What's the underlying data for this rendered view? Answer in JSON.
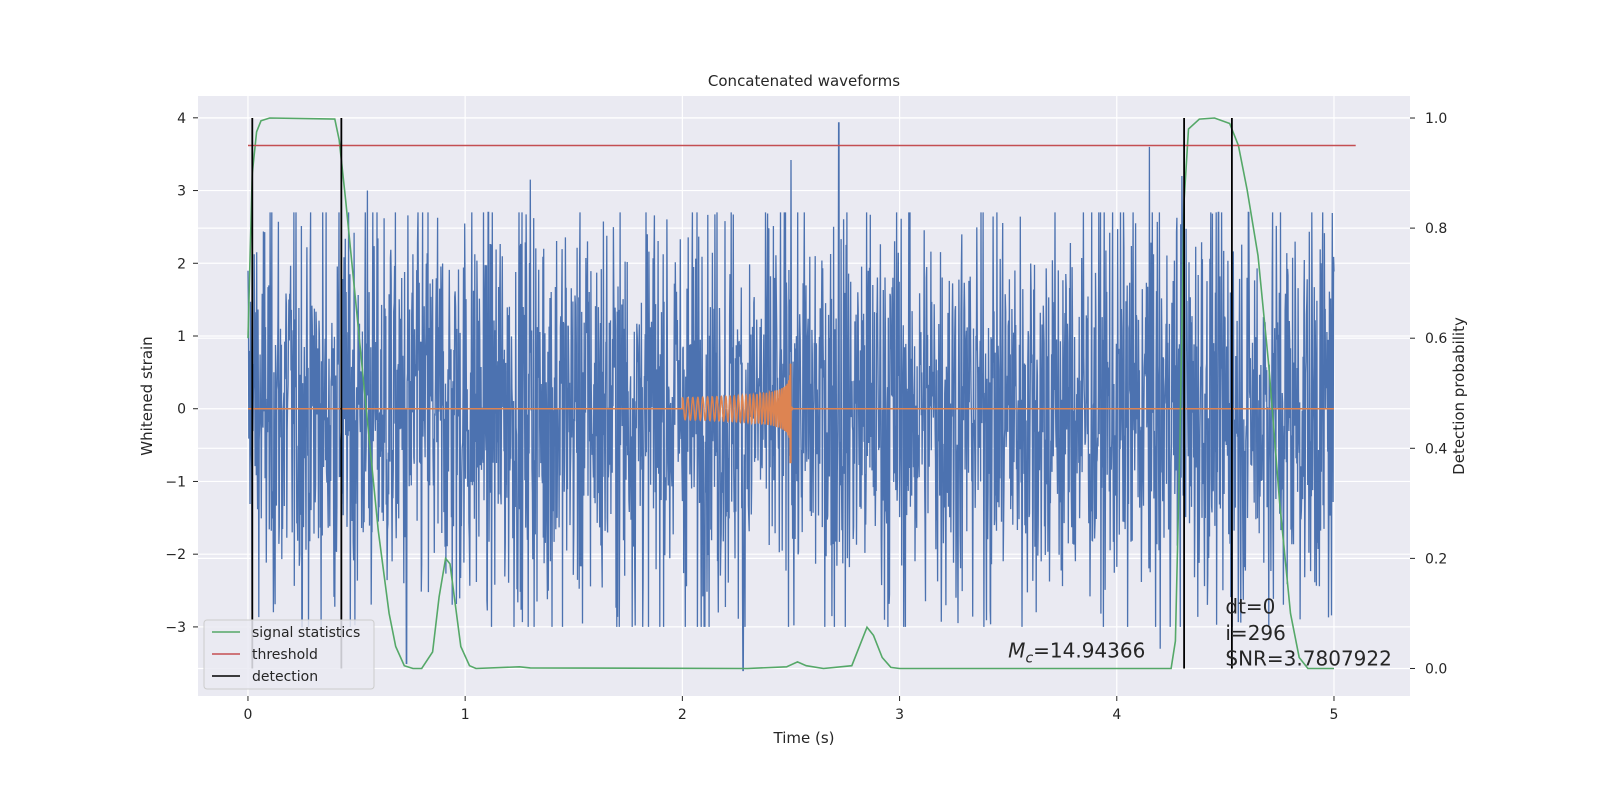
{
  "chart_data": {
    "type": "line",
    "title": "Concatenated waveforms",
    "xlabel": "Time (s)",
    "ylabel": "Whitened strain",
    "y2label": "Detection probability",
    "xlim": [
      -0.23,
      5.35
    ],
    "ylim": [
      -3.95,
      4.3
    ],
    "y2lim": [
      -0.05,
      1.04
    ],
    "xticks": [
      0,
      1,
      2,
      3,
      4,
      5
    ],
    "yticks": [
      -3,
      -2,
      -1,
      0,
      1,
      2,
      3,
      4
    ],
    "y2ticks": [
      0.0,
      0.2,
      0.4,
      0.6,
      0.8,
      1.0
    ],
    "x_tick_labels": [
      "0",
      "1",
      "2",
      "3",
      "4",
      "5"
    ],
    "y_tick_labels": [
      "−3",
      "−2",
      "−1",
      "0",
      "1",
      "2",
      "3",
      "4"
    ],
    "y2_tick_labels": [
      "0.0",
      "0.2",
      "0.4",
      "0.6",
      "0.8",
      "1.0"
    ],
    "grid": true,
    "legend_position": "lower-left",
    "colors": {
      "strain": "#4c72b0",
      "template": "#dd8452",
      "signal": "#55a868",
      "threshold": "#c44e52",
      "detection": "#000000",
      "axes_bg": "#eaeaf2",
      "grid": "#ffffff"
    },
    "series": [
      {
        "name": "",
        "axis": "left",
        "kind": "noise",
        "x_range": [
          0,
          5
        ],
        "typical_amplitude": 2.3,
        "peaks": [
          [
            2.72,
            3.93
          ],
          [
            2.5,
            3.42
          ],
          [
            4.15,
            3.6
          ],
          [
            4.3,
            3.2
          ],
          [
            1.3,
            3.15
          ],
          [
            0.55,
            3.0
          ],
          [
            2.28,
            -3.6
          ],
          [
            0.73,
            -3.5
          ],
          [
            4.2,
            -3.3
          ]
        ]
      },
      {
        "name": "",
        "axis": "left",
        "kind": "chirp",
        "x_range": [
          2.0,
          2.52
        ],
        "peak_time": 2.5,
        "peak_amplitude": 0.62
      },
      {
        "name": "signal statistics",
        "axis": "right",
        "points": [
          [
            0.0,
            0.6
          ],
          [
            0.01,
            0.75
          ],
          [
            0.02,
            0.9
          ],
          [
            0.04,
            0.975
          ],
          [
            0.06,
            0.995
          ],
          [
            0.1,
            1.0
          ],
          [
            0.4,
            0.998
          ],
          [
            0.42,
            0.96
          ],
          [
            0.45,
            0.85
          ],
          [
            0.5,
            0.65
          ],
          [
            0.55,
            0.45
          ],
          [
            0.6,
            0.25
          ],
          [
            0.65,
            0.1
          ],
          [
            0.68,
            0.04
          ],
          [
            0.72,
            0.005
          ],
          [
            0.76,
            0.0
          ],
          [
            0.8,
            0.0
          ],
          [
            0.85,
            0.03
          ],
          [
            0.88,
            0.13
          ],
          [
            0.91,
            0.2
          ],
          [
            0.93,
            0.19
          ],
          [
            0.95,
            0.13
          ],
          [
            0.98,
            0.04
          ],
          [
            1.02,
            0.005
          ],
          [
            1.05,
            0.0
          ],
          [
            1.25,
            0.003
          ],
          [
            1.3,
            0.001
          ],
          [
            2.3,
            0.0
          ],
          [
            2.48,
            0.003
          ],
          [
            2.53,
            0.012
          ],
          [
            2.57,
            0.005
          ],
          [
            2.65,
            0.0
          ],
          [
            2.78,
            0.005
          ],
          [
            2.82,
            0.045
          ],
          [
            2.85,
            0.075
          ],
          [
            2.88,
            0.06
          ],
          [
            2.92,
            0.02
          ],
          [
            2.96,
            0.002
          ],
          [
            3.0,
            0.0
          ],
          [
            4.25,
            0.0
          ],
          [
            4.27,
            0.05
          ],
          [
            4.29,
            0.4
          ],
          [
            4.31,
            0.85
          ],
          [
            4.33,
            0.98
          ],
          [
            4.38,
            0.998
          ],
          [
            4.45,
            1.0
          ],
          [
            4.52,
            0.99
          ],
          [
            4.56,
            0.95
          ],
          [
            4.6,
            0.87
          ],
          [
            4.65,
            0.75
          ],
          [
            4.7,
            0.55
          ],
          [
            4.75,
            0.3
          ],
          [
            4.8,
            0.1
          ],
          [
            4.84,
            0.02
          ],
          [
            4.88,
            0.0
          ],
          [
            5.0,
            0.0
          ]
        ]
      },
      {
        "name": "threshold",
        "axis": "right",
        "points": [
          [
            0.0,
            0.95
          ],
          [
            5.1,
            0.95
          ]
        ]
      },
      {
        "name": "detection",
        "axis": "right",
        "kind": "vlines",
        "x": [
          0.02,
          0.43,
          4.31,
          4.53
        ],
        "ymin": 0.0,
        "ymax": 1.0
      }
    ],
    "annotations": [
      {
        "key": "mc",
        "text_symbol": "M",
        "text_sub": "c",
        "text_rest": "=14.94366",
        "x": 3.5,
        "y": 0.02
      },
      {
        "key": "dt",
        "text": "dt=0",
        "x": 4.5,
        "y": 0.1
      },
      {
        "key": "i",
        "text": "i=296",
        "x": 4.5,
        "y": 0.052
      },
      {
        "key": "snr",
        "text": "SNR=3.7807922",
        "x": 4.5,
        "y": 0.005
      }
    ]
  }
}
